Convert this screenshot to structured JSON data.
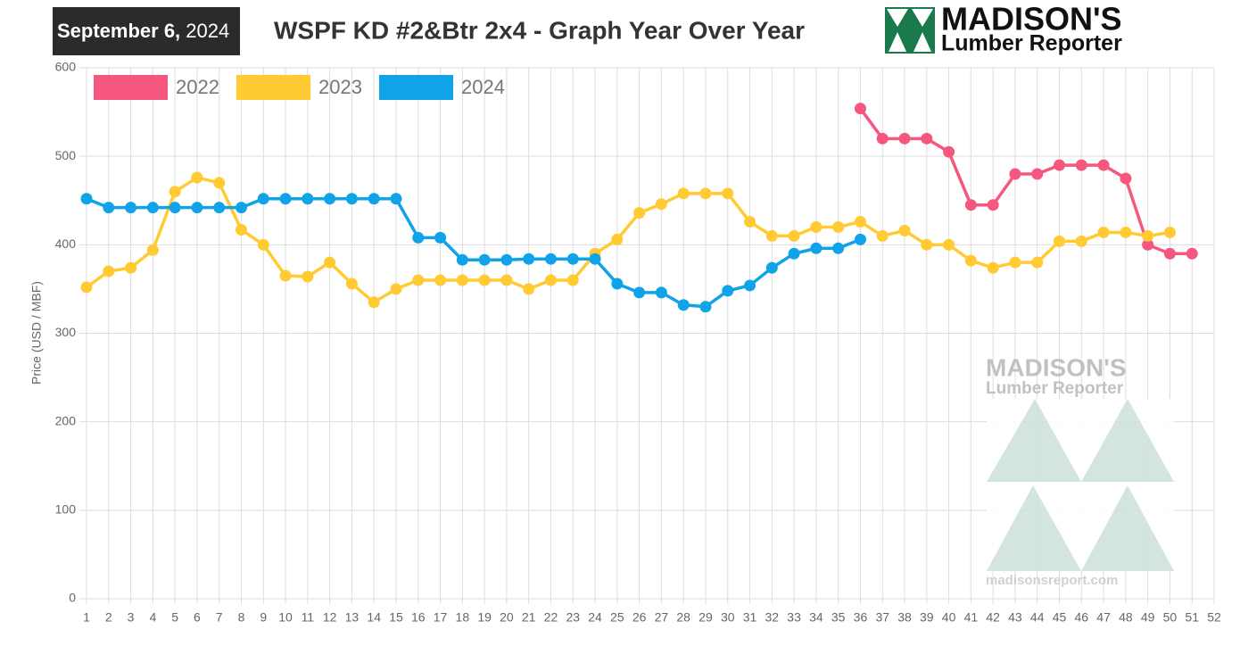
{
  "date_bold": "September 6,",
  "date_year": "2024",
  "logo": {
    "name": "MADISON'S",
    "sub": "Lumber Reporter"
  },
  "watermark": {
    "name": "MADISON'S",
    "sub": "Lumber Reporter",
    "url": "madisonsreport.com"
  },
  "chart_data": {
    "type": "line",
    "title": "WSPF KD #2&Btr 2x4 - Graph Year Over Year",
    "y_label": "Price (USD / MBF)",
    "categories": [
      "1",
      "2",
      "3",
      "4",
      "5",
      "6",
      "7",
      "8",
      "9",
      "10",
      "11",
      "12",
      "13",
      "14",
      "15",
      "16",
      "17",
      "18",
      "19",
      "20",
      "21",
      "22",
      "23",
      "24",
      "25",
      "26",
      "27",
      "28",
      "29",
      "30",
      "31",
      "32",
      "33",
      "34",
      "35",
      "36",
      "37",
      "38",
      "39",
      "40",
      "41",
      "42",
      "43",
      "44",
      "45",
      "46",
      "47",
      "48",
      "49",
      "50",
      "51",
      "52"
    ],
    "series": [
      {
        "name": "2022",
        "color": "#f5577f",
        "values": [
          null,
          null,
          null,
          null,
          null,
          null,
          null,
          null,
          null,
          null,
          null,
          null,
          null,
          null,
          null,
          null,
          null,
          null,
          null,
          null,
          null,
          null,
          null,
          null,
          null,
          null,
          null,
          null,
          null,
          null,
          null,
          null,
          null,
          null,
          null,
          554,
          520,
          520,
          520,
          505,
          445,
          445,
          480,
          480,
          490,
          490,
          490,
          475,
          400,
          390,
          390,
          null
        ]
      },
      {
        "name": "2023",
        "color": "#ffca32",
        "values": [
          352,
          370,
          374,
          394,
          460,
          476,
          470,
          417,
          400,
          365,
          364,
          380,
          356,
          335,
          350,
          360,
          360,
          360,
          360,
          360,
          350,
          360,
          360,
          390,
          406,
          436,
          446,
          458,
          458,
          458,
          426,
          410,
          410,
          420,
          420,
          426,
          410,
          416,
          400,
          400,
          382,
          374,
          380,
          380,
          404,
          404,
          414,
          414,
          410,
          414,
          null,
          null
        ]
      },
      {
        "name": "2024",
        "color": "#10a3e8",
        "values": [
          452,
          442,
          442,
          442,
          442,
          442,
          442,
          442,
          452,
          452,
          452,
          452,
          452,
          452,
          452,
          408,
          408,
          383,
          383,
          383,
          384,
          384,
          384,
          384,
          356,
          346,
          346,
          332,
          330,
          348,
          354,
          374,
          390,
          396,
          396,
          406,
          null,
          null,
          null,
          null,
          null,
          null,
          null,
          null,
          null,
          null,
          null,
          null,
          null,
          null,
          null,
          null
        ]
      }
    ],
    "ylim": [
      0,
      600
    ],
    "yticks": [
      0,
      100,
      200,
      300,
      400,
      500,
      600
    ],
    "grid": true,
    "legend": "top-left"
  }
}
